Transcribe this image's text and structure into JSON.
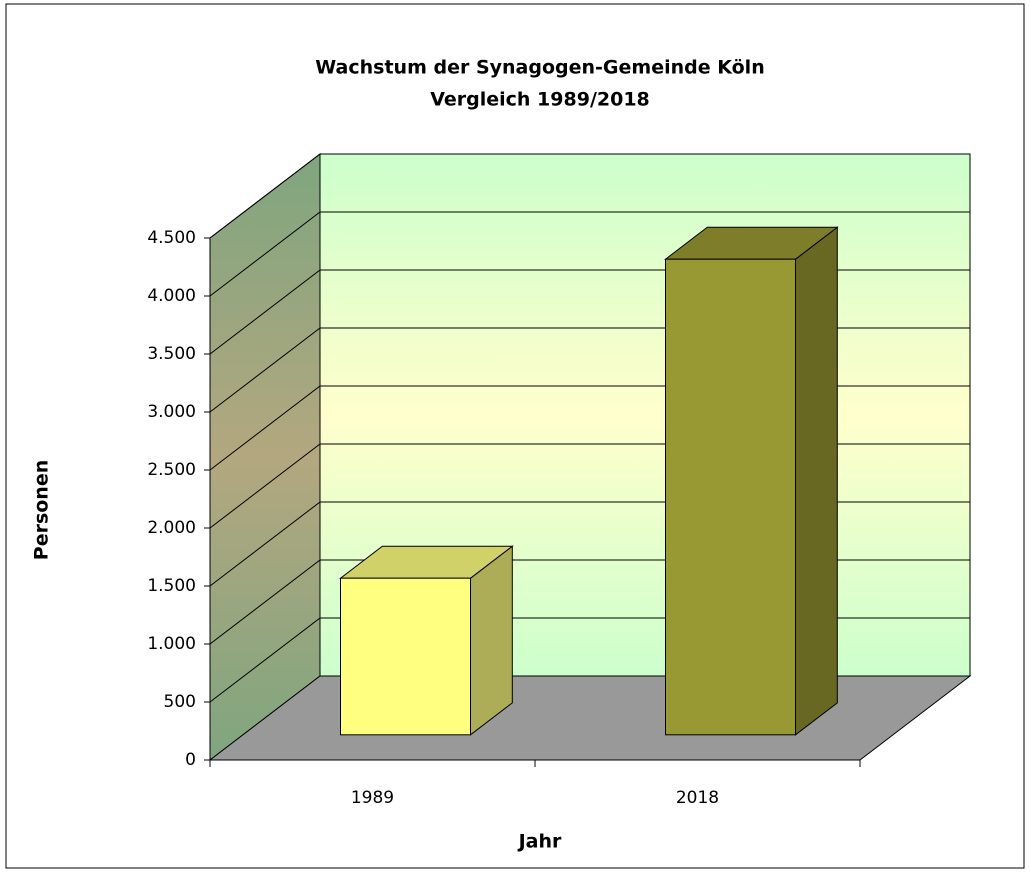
{
  "chart_data": {
    "type": "bar3d",
    "title": "Wachstum der Synagogen-Gemeinde Köln",
    "subtitle": "Vergleich 1989/2018",
    "x_label": "Jahr",
    "y_label": "Personen",
    "categories": [
      "1989",
      "2018"
    ],
    "values": [
      1350,
      4100
    ],
    "colors": [
      "#ffff80",
      "#999933"
    ],
    "ylim": [
      0,
      4500
    ],
    "yticks": [
      0,
      500,
      {
        "value": 1000,
        "label": "1.000"
      },
      {
        "value": 1500,
        "label": "1.500"
      },
      {
        "value": 2000,
        "label": "2.000"
      },
      {
        "value": 2500,
        "label": "2.500"
      },
      {
        "value": 3000,
        "label": "3.000"
      },
      {
        "value": 3500,
        "label": "3.500"
      },
      {
        "value": 4000,
        "label": "4.000"
      },
      {
        "value": 4500,
        "label": "4.500"
      }
    ],
    "grid": true
  }
}
